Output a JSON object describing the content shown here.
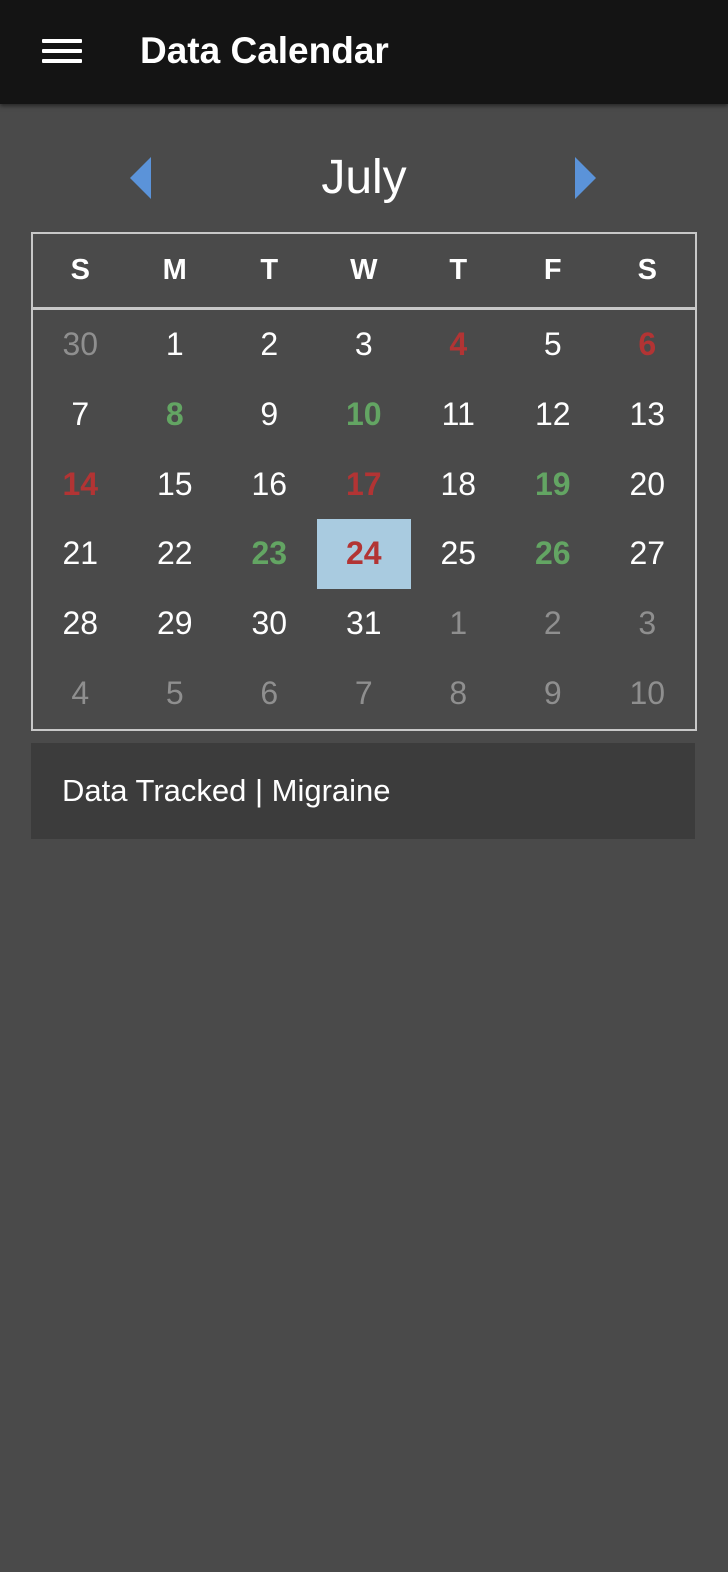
{
  "app_bar": {
    "title": "Data Calendar",
    "menu_icon": "menu-icon"
  },
  "calendar": {
    "month": "July",
    "prev_icon": "chevron-left-icon",
    "next_icon": "chevron-right-icon",
    "weekdays": [
      "S",
      "M",
      "T",
      "W",
      "T",
      "F",
      "S"
    ],
    "colors": {
      "red": "#b23434",
      "green": "#63a563",
      "selected": "#a9cbe0",
      "out_of_month": "#8f8f8f",
      "arrow": "#5b93d9"
    },
    "weeks": [
      [
        {
          "label": "30",
          "state": "out"
        },
        {
          "label": "1",
          "state": "normal"
        },
        {
          "label": "2",
          "state": "normal"
        },
        {
          "label": "3",
          "state": "normal"
        },
        {
          "label": "4",
          "state": "red"
        },
        {
          "label": "5",
          "state": "normal"
        },
        {
          "label": "6",
          "state": "red"
        }
      ],
      [
        {
          "label": "7",
          "state": "normal"
        },
        {
          "label": "8",
          "state": "green"
        },
        {
          "label": "9",
          "state": "normal"
        },
        {
          "label": "10",
          "state": "green"
        },
        {
          "label": "11",
          "state": "normal"
        },
        {
          "label": "12",
          "state": "normal"
        },
        {
          "label": "13",
          "state": "normal"
        }
      ],
      [
        {
          "label": "14",
          "state": "red"
        },
        {
          "label": "15",
          "state": "normal"
        },
        {
          "label": "16",
          "state": "normal"
        },
        {
          "label": "17",
          "state": "red"
        },
        {
          "label": "18",
          "state": "normal"
        },
        {
          "label": "19",
          "state": "green"
        },
        {
          "label": "20",
          "state": "normal"
        }
      ],
      [
        {
          "label": "21",
          "state": "normal"
        },
        {
          "label": "22",
          "state": "normal"
        },
        {
          "label": "23",
          "state": "green"
        },
        {
          "label": "24",
          "state": "red",
          "selected": true
        },
        {
          "label": "25",
          "state": "normal"
        },
        {
          "label": "26",
          "state": "green"
        },
        {
          "label": "27",
          "state": "normal"
        }
      ],
      [
        {
          "label": "28",
          "state": "normal"
        },
        {
          "label": "29",
          "state": "normal"
        },
        {
          "label": "30",
          "state": "normal"
        },
        {
          "label": "31",
          "state": "normal"
        },
        {
          "label": "1",
          "state": "out"
        },
        {
          "label": "2",
          "state": "out"
        },
        {
          "label": "3",
          "state": "out"
        }
      ],
      [
        {
          "label": "4",
          "state": "out"
        },
        {
          "label": "5",
          "state": "out"
        },
        {
          "label": "6",
          "state": "out"
        },
        {
          "label": "7",
          "state": "out"
        },
        {
          "label": "8",
          "state": "out"
        },
        {
          "label": "9",
          "state": "out"
        },
        {
          "label": "10",
          "state": "out"
        }
      ]
    ]
  },
  "info": {
    "text": "Data Tracked | Migraine"
  }
}
